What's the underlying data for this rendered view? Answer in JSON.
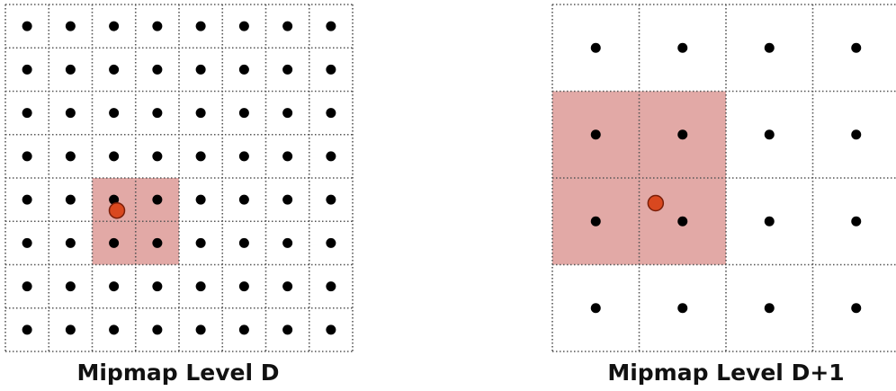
{
  "left_panel": {
    "caption": "Mipmap Level D",
    "grid_size": 8,
    "highlight": {
      "col_start": 2,
      "row_start": 4,
      "cols": 2,
      "rows": 2
    },
    "sample_point": {
      "col": 2.57,
      "row": 4.75
    }
  },
  "right_panel": {
    "caption": "Mipmap Level D+1",
    "grid_cols": 4,
    "grid_rows": 4,
    "highlight": {
      "col_start": 0,
      "row_start": 1,
      "cols": 2,
      "rows": 2
    },
    "sample_point": {
      "col": 1.19,
      "row": 2.29
    }
  },
  "colors": {
    "grid_line": "#555555",
    "texel_dot": "#000000",
    "highlight_fill": "#e2a9a6",
    "sample_fill": "#d9481f",
    "sample_stroke": "#7a1f0a"
  }
}
